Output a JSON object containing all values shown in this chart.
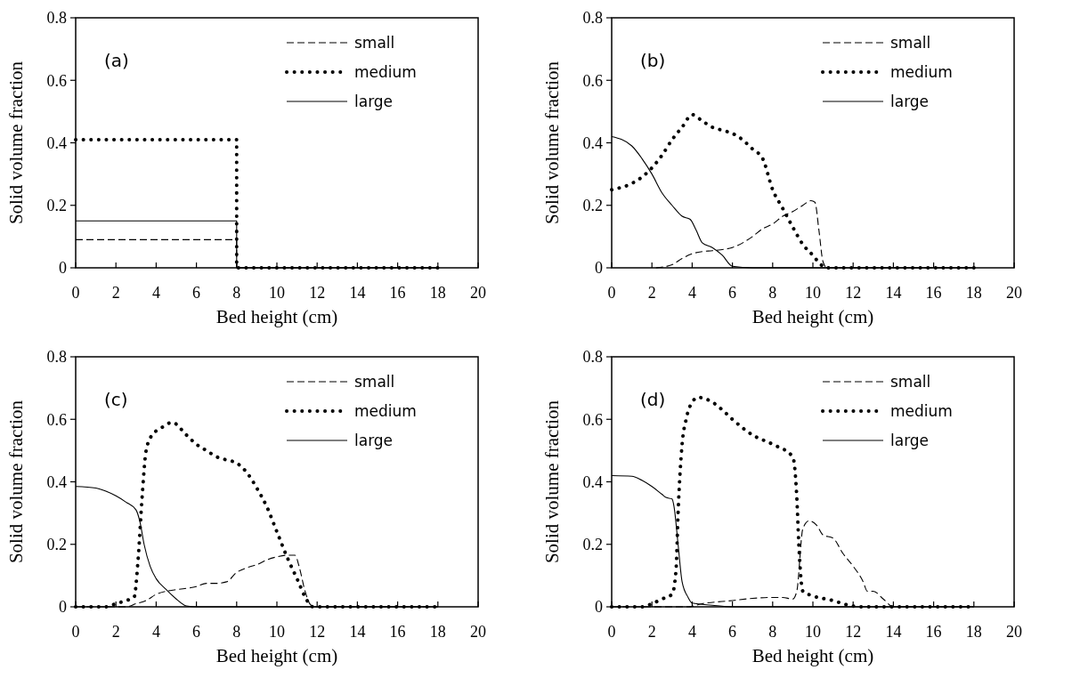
{
  "chart_data": [
    {
      "type": "line",
      "annotations": [
        "(a)"
      ],
      "xlabel": "Bed height (cm)",
      "ylabel": "Solid volume fraction",
      "xlim": [
        0,
        20
      ],
      "ylim": [
        0,
        0.8
      ],
      "xticks": [
        0,
        2,
        4,
        6,
        8,
        10,
        12,
        14,
        16,
        18,
        20
      ],
      "yticks": [
        0,
        0.2,
        0.4,
        0.6,
        0.8
      ],
      "legend": "top right",
      "grid": false,
      "series": [
        {
          "name": "small",
          "color": "#000000",
          "line_style": "dashed",
          "x": [
            0,
            8,
            8,
            18
          ],
          "values": [
            0.09,
            0.09,
            0,
            0
          ]
        },
        {
          "name": "medium",
          "color": "#000000",
          "line_style": "dotted",
          "x": [
            0,
            8,
            8,
            18
          ],
          "values": [
            0.41,
            0.41,
            0,
            0
          ]
        },
        {
          "name": "large",
          "color": "#000000",
          "line_style": "solid",
          "x": [
            0,
            8,
            8,
            18
          ],
          "values": [
            0.15,
            0.15,
            0,
            0
          ]
        }
      ]
    },
    {
      "type": "line",
      "annotations": [
        "(b)"
      ],
      "xlabel": "Bed height (cm)",
      "ylabel": "Solid volume fraction",
      "xlim": [
        0,
        20
      ],
      "ylim": [
        0,
        0.8
      ],
      "xticks": [
        0,
        2,
        4,
        6,
        8,
        10,
        12,
        14,
        16,
        18,
        20
      ],
      "yticks": [
        0,
        0.2,
        0.4,
        0.6,
        0.8
      ],
      "legend": "top right",
      "grid": false,
      "series": [
        {
          "name": "small",
          "color": "#000000",
          "line_style": "dashed",
          "x": [
            2.2,
            3,
            3.5,
            4,
            4.5,
            5,
            6,
            7,
            7.5,
            8,
            8.5,
            9,
            9.5,
            9.9,
            10.1,
            10.3,
            10.5,
            10.7,
            18
          ],
          "values": [
            0,
            0.01,
            0.03,
            0.045,
            0.052,
            0.055,
            0.065,
            0.1,
            0.125,
            0.14,
            0.165,
            0.18,
            0.2,
            0.215,
            0.21,
            0.12,
            0.02,
            0,
            0
          ]
        },
        {
          "name": "medium",
          "color": "#000000",
          "line_style": "dotted",
          "x": [
            0,
            1,
            1.5,
            2,
            2.5,
            3,
            3.5,
            4,
            4.5,
            5,
            5.5,
            6,
            6.5,
            7,
            7.5,
            8,
            8.5,
            9,
            9.5,
            10,
            10.4,
            10.7,
            18
          ],
          "values": [
            0.25,
            0.27,
            0.29,
            0.32,
            0.36,
            0.41,
            0.45,
            0.49,
            0.47,
            0.45,
            0.44,
            0.43,
            0.41,
            0.38,
            0.35,
            0.25,
            0.19,
            0.13,
            0.075,
            0.04,
            0.01,
            0,
            0
          ]
        },
        {
          "name": "large",
          "color": "#000000",
          "line_style": "solid",
          "x": [
            0,
            1,
            1.5,
            2,
            2.5,
            3,
            3.5,
            3.9,
            4.2,
            4.5,
            5,
            5.5,
            6,
            7,
            18
          ],
          "values": [
            0.42,
            0.39,
            0.35,
            0.3,
            0.24,
            0.2,
            0.165,
            0.155,
            0.12,
            0.08,
            0.065,
            0.04,
            0.005,
            0,
            0
          ]
        }
      ]
    },
    {
      "type": "line",
      "annotations": [
        "(c)"
      ],
      "xlabel": "Bed height (cm)",
      "ylabel": "Solid volume fraction",
      "xlim": [
        0,
        20
      ],
      "ylim": [
        0,
        0.8
      ],
      "xticks": [
        0,
        2,
        4,
        6,
        8,
        10,
        12,
        14,
        16,
        18,
        20
      ],
      "yticks": [
        0,
        0.2,
        0.4,
        0.6,
        0.8
      ],
      "legend": "top right",
      "grid": false,
      "series": [
        {
          "name": "small",
          "color": "#000000",
          "line_style": "dashed",
          "x": [
            0,
            2.5,
            3,
            3.5,
            4,
            4.5,
            5,
            6,
            6.5,
            7,
            7.5,
            8,
            8.5,
            9,
            9.5,
            10,
            10.5,
            10.9,
            11.1,
            11.4,
            11.7,
            12,
            18
          ],
          "values": [
            0,
            0,
            0.01,
            0.02,
            0.04,
            0.05,
            0.055,
            0.065,
            0.075,
            0.075,
            0.08,
            0.11,
            0.125,
            0.135,
            0.15,
            0.16,
            0.165,
            0.165,
            0.13,
            0.05,
            0.005,
            0,
            0
          ]
        },
        {
          "name": "medium",
          "color": "#000000",
          "line_style": "dotted",
          "x": [
            0,
            1.5,
            2,
            2.5,
            2.9,
            3.1,
            3.3,
            3.5,
            3.8,
            4.2,
            4.8,
            5.5,
            6,
            6.5,
            7,
            7.5,
            8,
            8.5,
            9,
            9.5,
            10,
            10.5,
            11,
            11.5,
            11.8,
            18
          ],
          "values": [
            0,
            0,
            0.01,
            0.02,
            0.03,
            0.15,
            0.35,
            0.5,
            0.55,
            0.57,
            0.59,
            0.55,
            0.52,
            0.5,
            0.48,
            0.47,
            0.46,
            0.43,
            0.38,
            0.32,
            0.24,
            0.16,
            0.09,
            0.02,
            0,
            0
          ]
        },
        {
          "name": "large",
          "color": "#000000",
          "line_style": "solid",
          "x": [
            0,
            1,
            1.5,
            2,
            2.5,
            3,
            3.2,
            3.4,
            3.7,
            4,
            4.5,
            5,
            5.5,
            6,
            18
          ],
          "values": [
            0.385,
            0.38,
            0.37,
            0.355,
            0.335,
            0.31,
            0.27,
            0.2,
            0.13,
            0.09,
            0.055,
            0.025,
            0.003,
            0,
            0
          ]
        }
      ]
    },
    {
      "type": "line",
      "annotations": [
        "(d)"
      ],
      "xlabel": "Bed height (cm)",
      "ylabel": "Solid volume fraction",
      "xlim": [
        0,
        20
      ],
      "ylim": [
        0,
        0.8
      ],
      "xticks": [
        0,
        2,
        4,
        6,
        8,
        10,
        12,
        14,
        16,
        18,
        20
      ],
      "yticks": [
        0,
        0.2,
        0.4,
        0.6,
        0.8
      ],
      "legend": "top right",
      "grid": false,
      "series": [
        {
          "name": "small",
          "color": "#000000",
          "line_style": "dashed",
          "x": [
            0,
            3.8,
            4.5,
            6,
            7,
            8,
            8.5,
            9,
            9.2,
            9.5,
            9.8,
            10.2,
            10.5,
            11,
            11.5,
            12,
            12.5,
            12.7,
            13,
            13.5,
            14,
            18
          ],
          "values": [
            0,
            0,
            0.01,
            0.02,
            0.027,
            0.03,
            0.03,
            0.025,
            0.05,
            0.25,
            0.275,
            0.26,
            0.23,
            0.22,
            0.17,
            0.13,
            0.08,
            0.05,
            0.05,
            0.025,
            0,
            0
          ]
        },
        {
          "name": "medium",
          "color": "#000000",
          "line_style": "dotted",
          "x": [
            0,
            1.5,
            2,
            2.5,
            3,
            3.2,
            3.3,
            3.5,
            3.7,
            4,
            4.3,
            5,
            5.5,
            6,
            7,
            8,
            9,
            9.2,
            9.3,
            9.5,
            10,
            11,
            11.5,
            12,
            12.5,
            18
          ],
          "values": [
            0,
            0,
            0.01,
            0.025,
            0.04,
            0.12,
            0.3,
            0.52,
            0.6,
            0.655,
            0.67,
            0.655,
            0.63,
            0.6,
            0.55,
            0.52,
            0.48,
            0.35,
            0.2,
            0.05,
            0.035,
            0.02,
            0.01,
            0.002,
            0,
            0
          ]
        },
        {
          "name": "large",
          "color": "#000000",
          "line_style": "solid",
          "x": [
            0,
            1,
            1.5,
            2,
            2.5,
            2.7,
            3,
            3.1,
            3.3,
            3.5,
            3.8,
            4,
            5,
            6,
            18
          ],
          "values": [
            0.42,
            0.418,
            0.405,
            0.385,
            0.36,
            0.35,
            0.345,
            0.32,
            0.2,
            0.08,
            0.03,
            0.012,
            0.005,
            0,
            0
          ]
        }
      ]
    }
  ]
}
